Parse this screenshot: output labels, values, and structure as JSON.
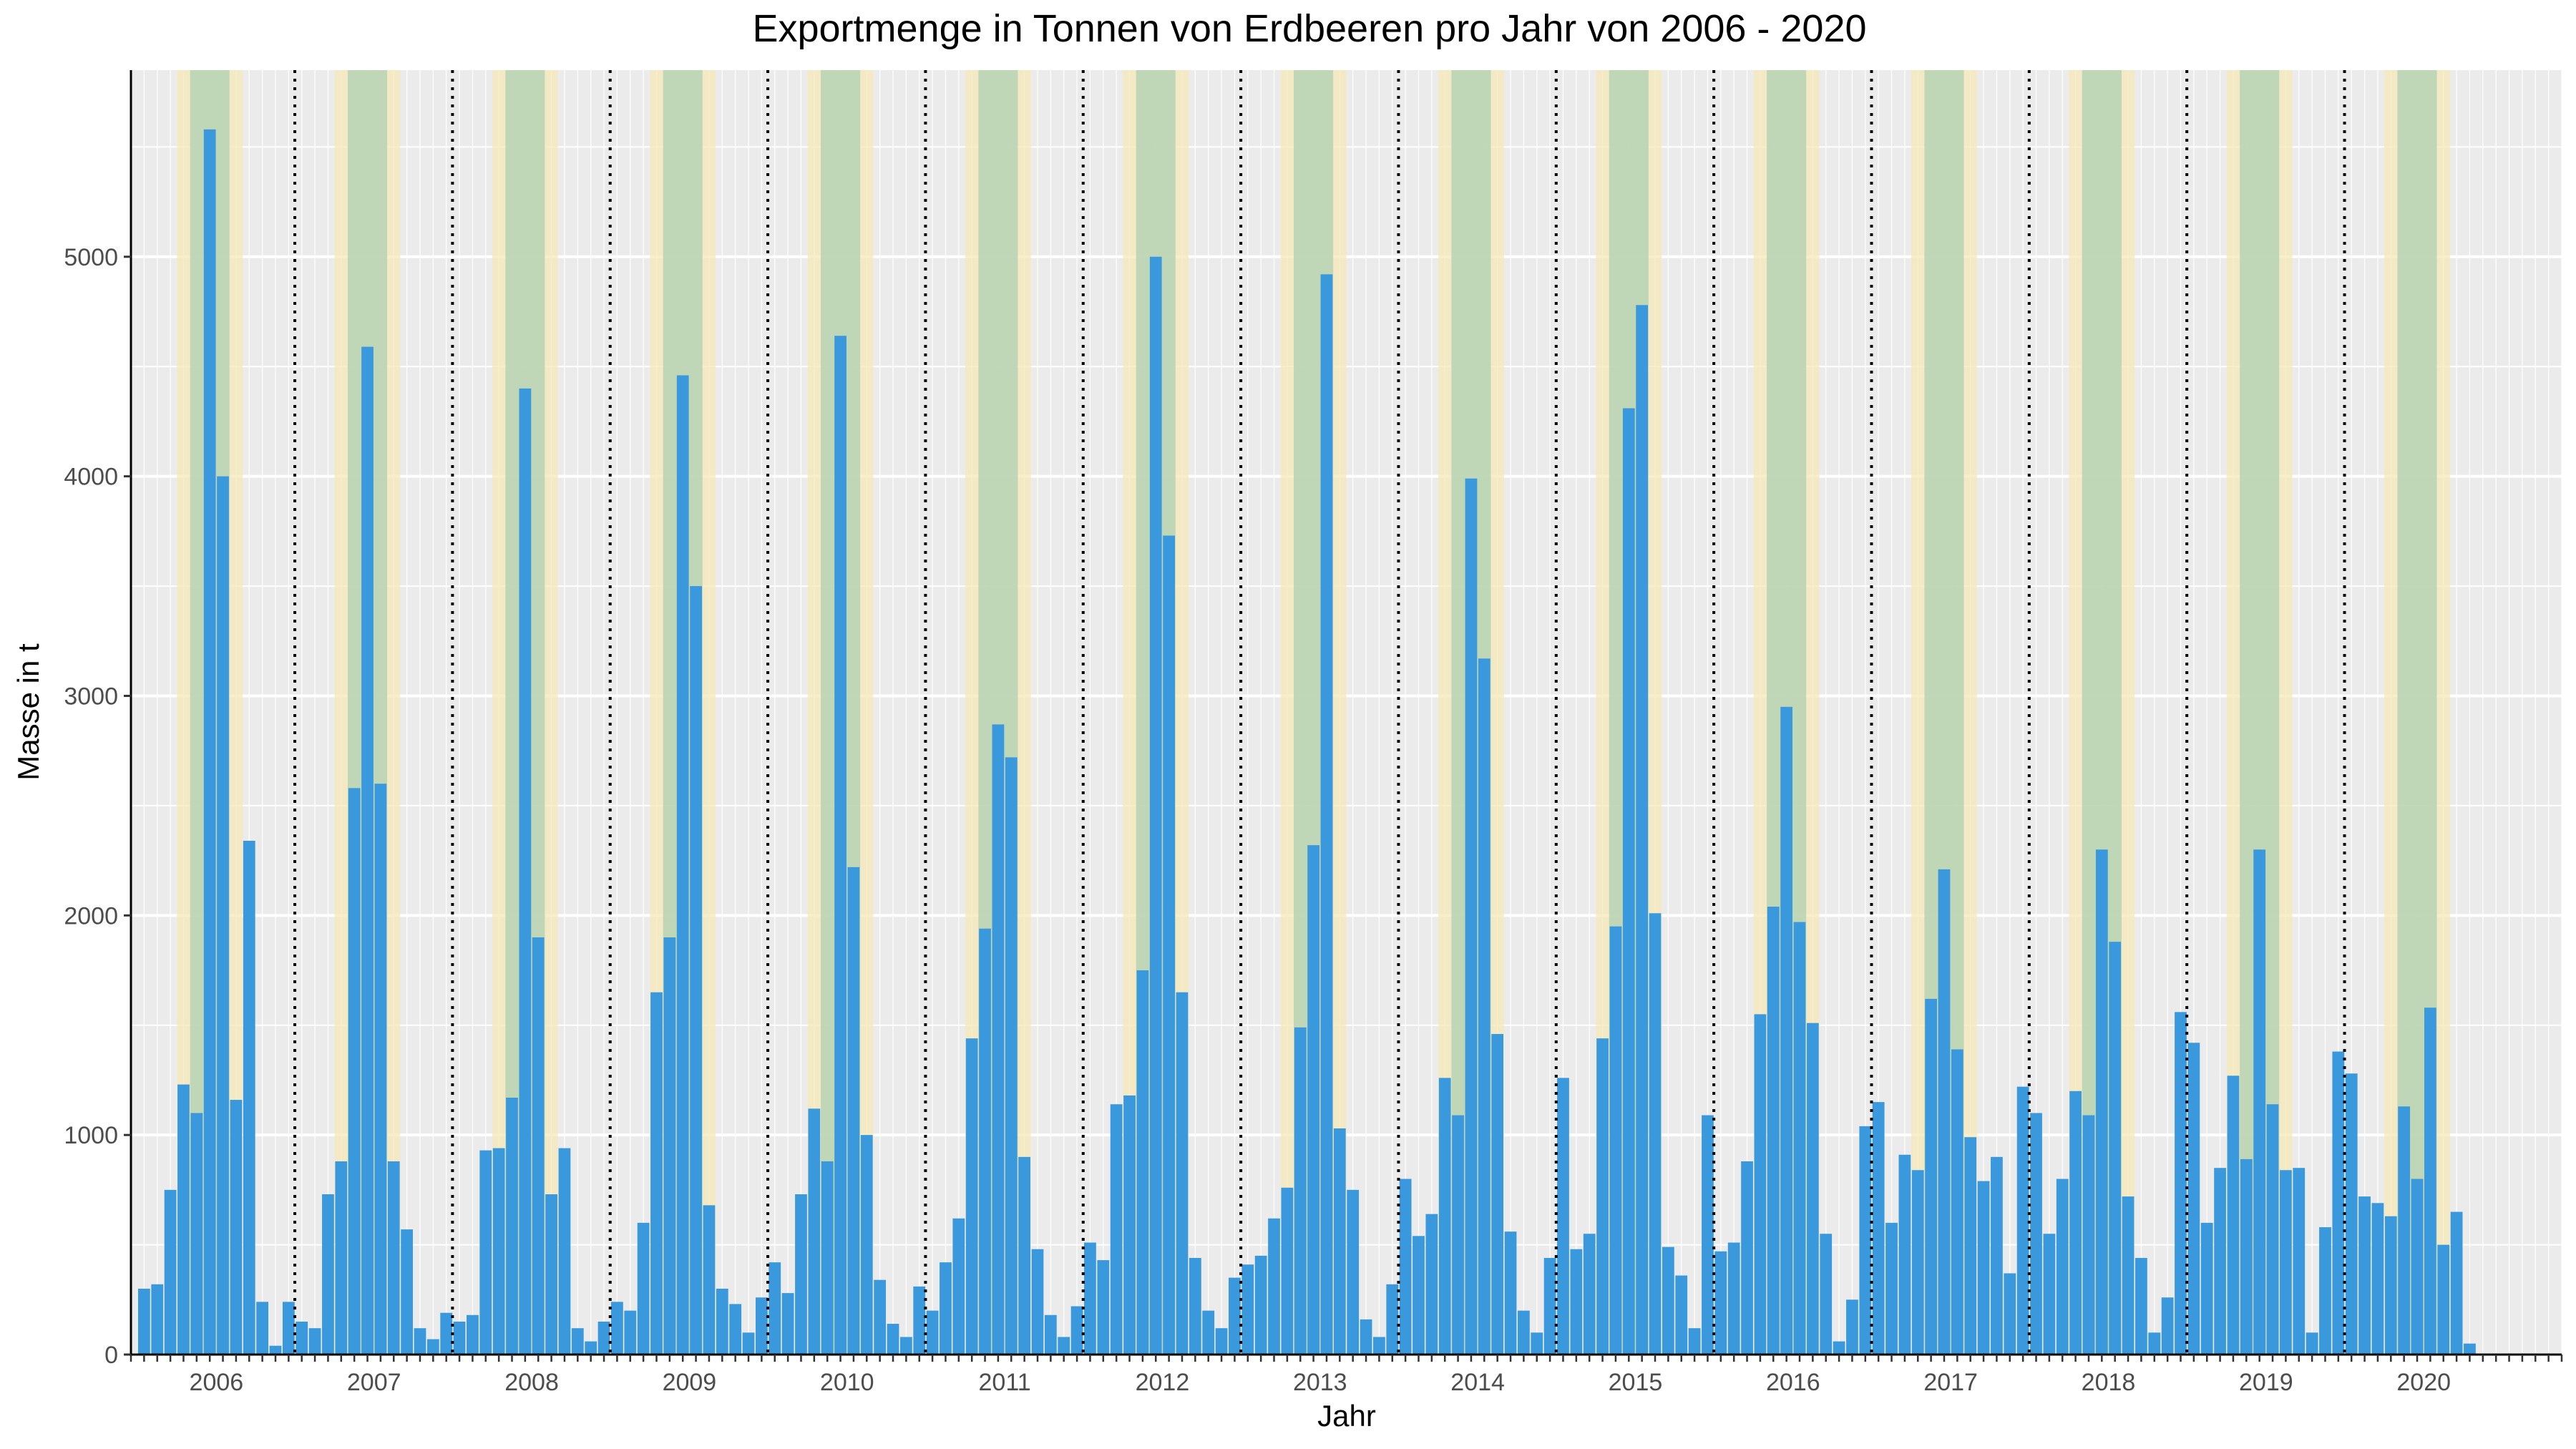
{
  "chart_data": {
    "type": "bar",
    "title": "Exportmenge in Tonnen von Erdbeeren pro Jahr von 2006 - 2020",
    "xlabel": "Jahr",
    "ylabel": "Masse in t",
    "years": [
      "2006",
      "2007",
      "2008",
      "2009",
      "2010",
      "2011",
      "2012",
      "2013",
      "2014",
      "2015",
      "2016",
      "2017",
      "2018",
      "2019",
      "2020"
    ],
    "y_ticks": [
      0,
      1000,
      2000,
      3000,
      4000,
      5000
    ],
    "ylim": [
      0,
      5850
    ],
    "months_per_year": 12,
    "series": [
      {
        "values": [
          300,
          320,
          750,
          1230,
          1100,
          5580,
          4000,
          1160,
          2340,
          240,
          40,
          240,
          150,
          120,
          730,
          880,
          2580,
          4590,
          2600,
          880,
          570,
          120,
          70,
          190,
          150,
          180,
          930,
          940,
          1170,
          4400,
          1900,
          730,
          940,
          120,
          60,
          150,
          240,
          200,
          600,
          1650,
          1900,
          4460,
          3500,
          680,
          300,
          230,
          100,
          260,
          420,
          280,
          730,
          1120,
          880,
          4640,
          2220,
          1000,
          340,
          140,
          80,
          310,
          200,
          420,
          620,
          1440,
          1940,
          2870,
          2720,
          900,
          480,
          180,
          80,
          220,
          510,
          430,
          1140,
          1180,
          1750,
          5000,
          3730,
          1650,
          440,
          200,
          120,
          350,
          410,
          450,
          620,
          760,
          1490,
          2320,
          4920,
          1030,
          750,
          160,
          80,
          320,
          800,
          540,
          640,
          1260,
          1090,
          3990,
          3170,
          1460,
          560,
          200,
          100,
          440,
          1260,
          480,
          550,
          1440,
          1950,
          4310,
          4780,
          2010,
          490,
          360,
          120,
          1090,
          470,
          510,
          880,
          1550,
          2040,
          2950,
          1970,
          1510,
          550,
          60,
          250,
          1040,
          1150,
          600,
          910,
          840,
          1620,
          2210,
          1390,
          990,
          790,
          900,
          370,
          1220,
          1100,
          550,
          800,
          1200,
          1090,
          2300,
          1880,
          720,
          440,
          100,
          260,
          1560,
          1420,
          600,
          850,
          1270,
          890,
          2300,
          1140,
          840,
          850,
          100,
          580,
          1380,
          1280,
          720,
          690,
          630,
          1130,
          800,
          1580,
          500,
          650,
          50
        ]
      }
    ],
    "highlight": {
      "green_months": [
        "Mai",
        "Jun",
        "Jul"
      ],
      "yellow_months": [
        "Apr",
        "Aug"
      ]
    },
    "colors": {
      "bar": "#3a99dc",
      "panel": "#ebebeb",
      "grid": "#ffffff",
      "green_band": "#a8cdb0",
      "yellow_band": "#f5e8b8",
      "divider": "#000000"
    },
    "grid": true
  }
}
